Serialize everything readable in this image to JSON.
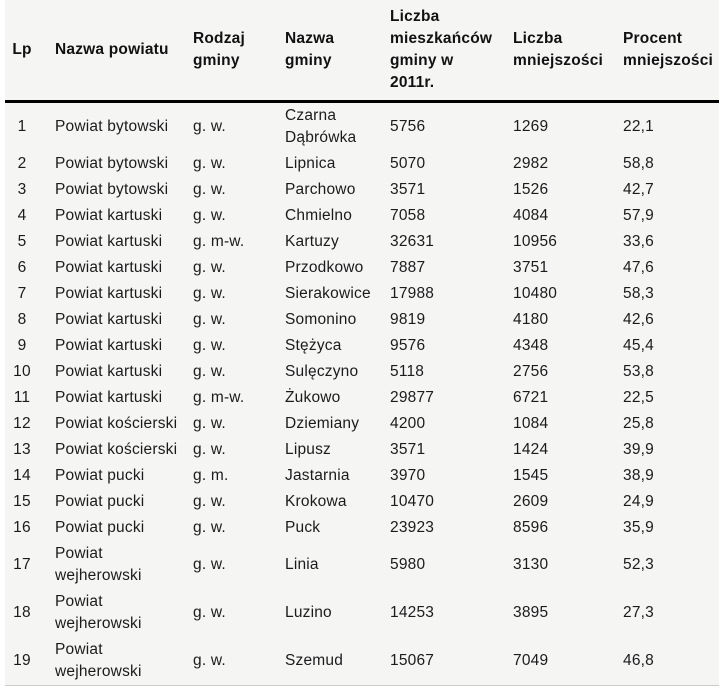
{
  "table": {
    "columns": [
      {
        "key": "lp",
        "label": "Lp"
      },
      {
        "key": "powiat",
        "label": "Nazwa powiatu"
      },
      {
        "key": "rodzaj",
        "label": "Rodzaj\ngminy"
      },
      {
        "key": "gmina",
        "label": "Nazwa\ngminy"
      },
      {
        "key": "mieszkancy",
        "label": "Liczba\nmieszkańców\ngminy w\n2011r."
      },
      {
        "key": "mniejszosc",
        "label": "Liczba\nmniejszości"
      },
      {
        "key": "procent",
        "label": "Procent\nmniejszości"
      }
    ],
    "rows": [
      [
        "1",
        "Powiat bytowski",
        "g. w.",
        "Czarna\nDąbrówka",
        "5756",
        "1269",
        "22,1"
      ],
      [
        "2",
        "Powiat bytowski",
        "g. w.",
        "Lipnica",
        "5070",
        "2982",
        "58,8"
      ],
      [
        "3",
        "Powiat bytowski",
        "g. w.",
        "Parchowo",
        "3571",
        "1526",
        "42,7"
      ],
      [
        "4",
        "Powiat kartuski",
        "g. w.",
        "Chmielno",
        "7058",
        "4084",
        "57,9"
      ],
      [
        "5",
        "Powiat kartuski",
        "g. m-w.",
        "Kartuzy",
        "32631",
        "10956",
        "33,6"
      ],
      [
        "6",
        "Powiat kartuski",
        "g. w.",
        "Przodkowo",
        "7887",
        "3751",
        "47,6"
      ],
      [
        "7",
        "Powiat kartuski",
        "g. w.",
        "Sierakowice",
        "17988",
        "10480",
        "58,3"
      ],
      [
        "8",
        "Powiat kartuski",
        "g. w.",
        "Somonino",
        "9819",
        "4180",
        "42,6"
      ],
      [
        "9",
        "Powiat kartuski",
        "g. w.",
        "Stężyca",
        "9576",
        "4348",
        "45,4"
      ],
      [
        "10",
        "Powiat kartuski",
        "g. w.",
        "Sulęczyno",
        "5118",
        "2756",
        "53,8"
      ],
      [
        "11",
        "Powiat kartuski",
        "g. m-w.",
        "Żukowo",
        "29877",
        "6721",
        "22,5"
      ],
      [
        "12",
        "Powiat kościerski",
        "g. w.",
        "Dziemiany",
        "4200",
        "1084",
        "25,8"
      ],
      [
        "13",
        "Powiat kościerski",
        "g. w.",
        "Lipusz",
        "3571",
        "1424",
        "39,9"
      ],
      [
        "14",
        "Powiat pucki",
        "g. m.",
        "Jastarnia",
        "3970",
        "1545",
        "38,9"
      ],
      [
        "15",
        "Powiat pucki",
        "g. w.",
        "Krokowa",
        "10470",
        "2609",
        "24,9"
      ],
      [
        "16",
        "Powiat pucki",
        "g. w.",
        "Puck",
        "23923",
        "8596",
        "35,9"
      ],
      [
        "17",
        "Powiat\nwejherowski",
        "g. w.",
        "Linia",
        "5980",
        "3130",
        "52,3"
      ],
      [
        "18",
        "Powiat\nwejherowski",
        "g. w.",
        "Luzino",
        "14253",
        "3895",
        "27,3"
      ],
      [
        "19",
        "Powiat\nwejherowski",
        "g. w.",
        "Szemud",
        "15067",
        "7049",
        "46,8"
      ]
    ]
  },
  "colors": {
    "table_background": "#f5f5f4",
    "page_background": "#ffffff",
    "text": "#1b1b1b",
    "header_rule": "#000000",
    "bottom_rule": "#cccccc"
  }
}
